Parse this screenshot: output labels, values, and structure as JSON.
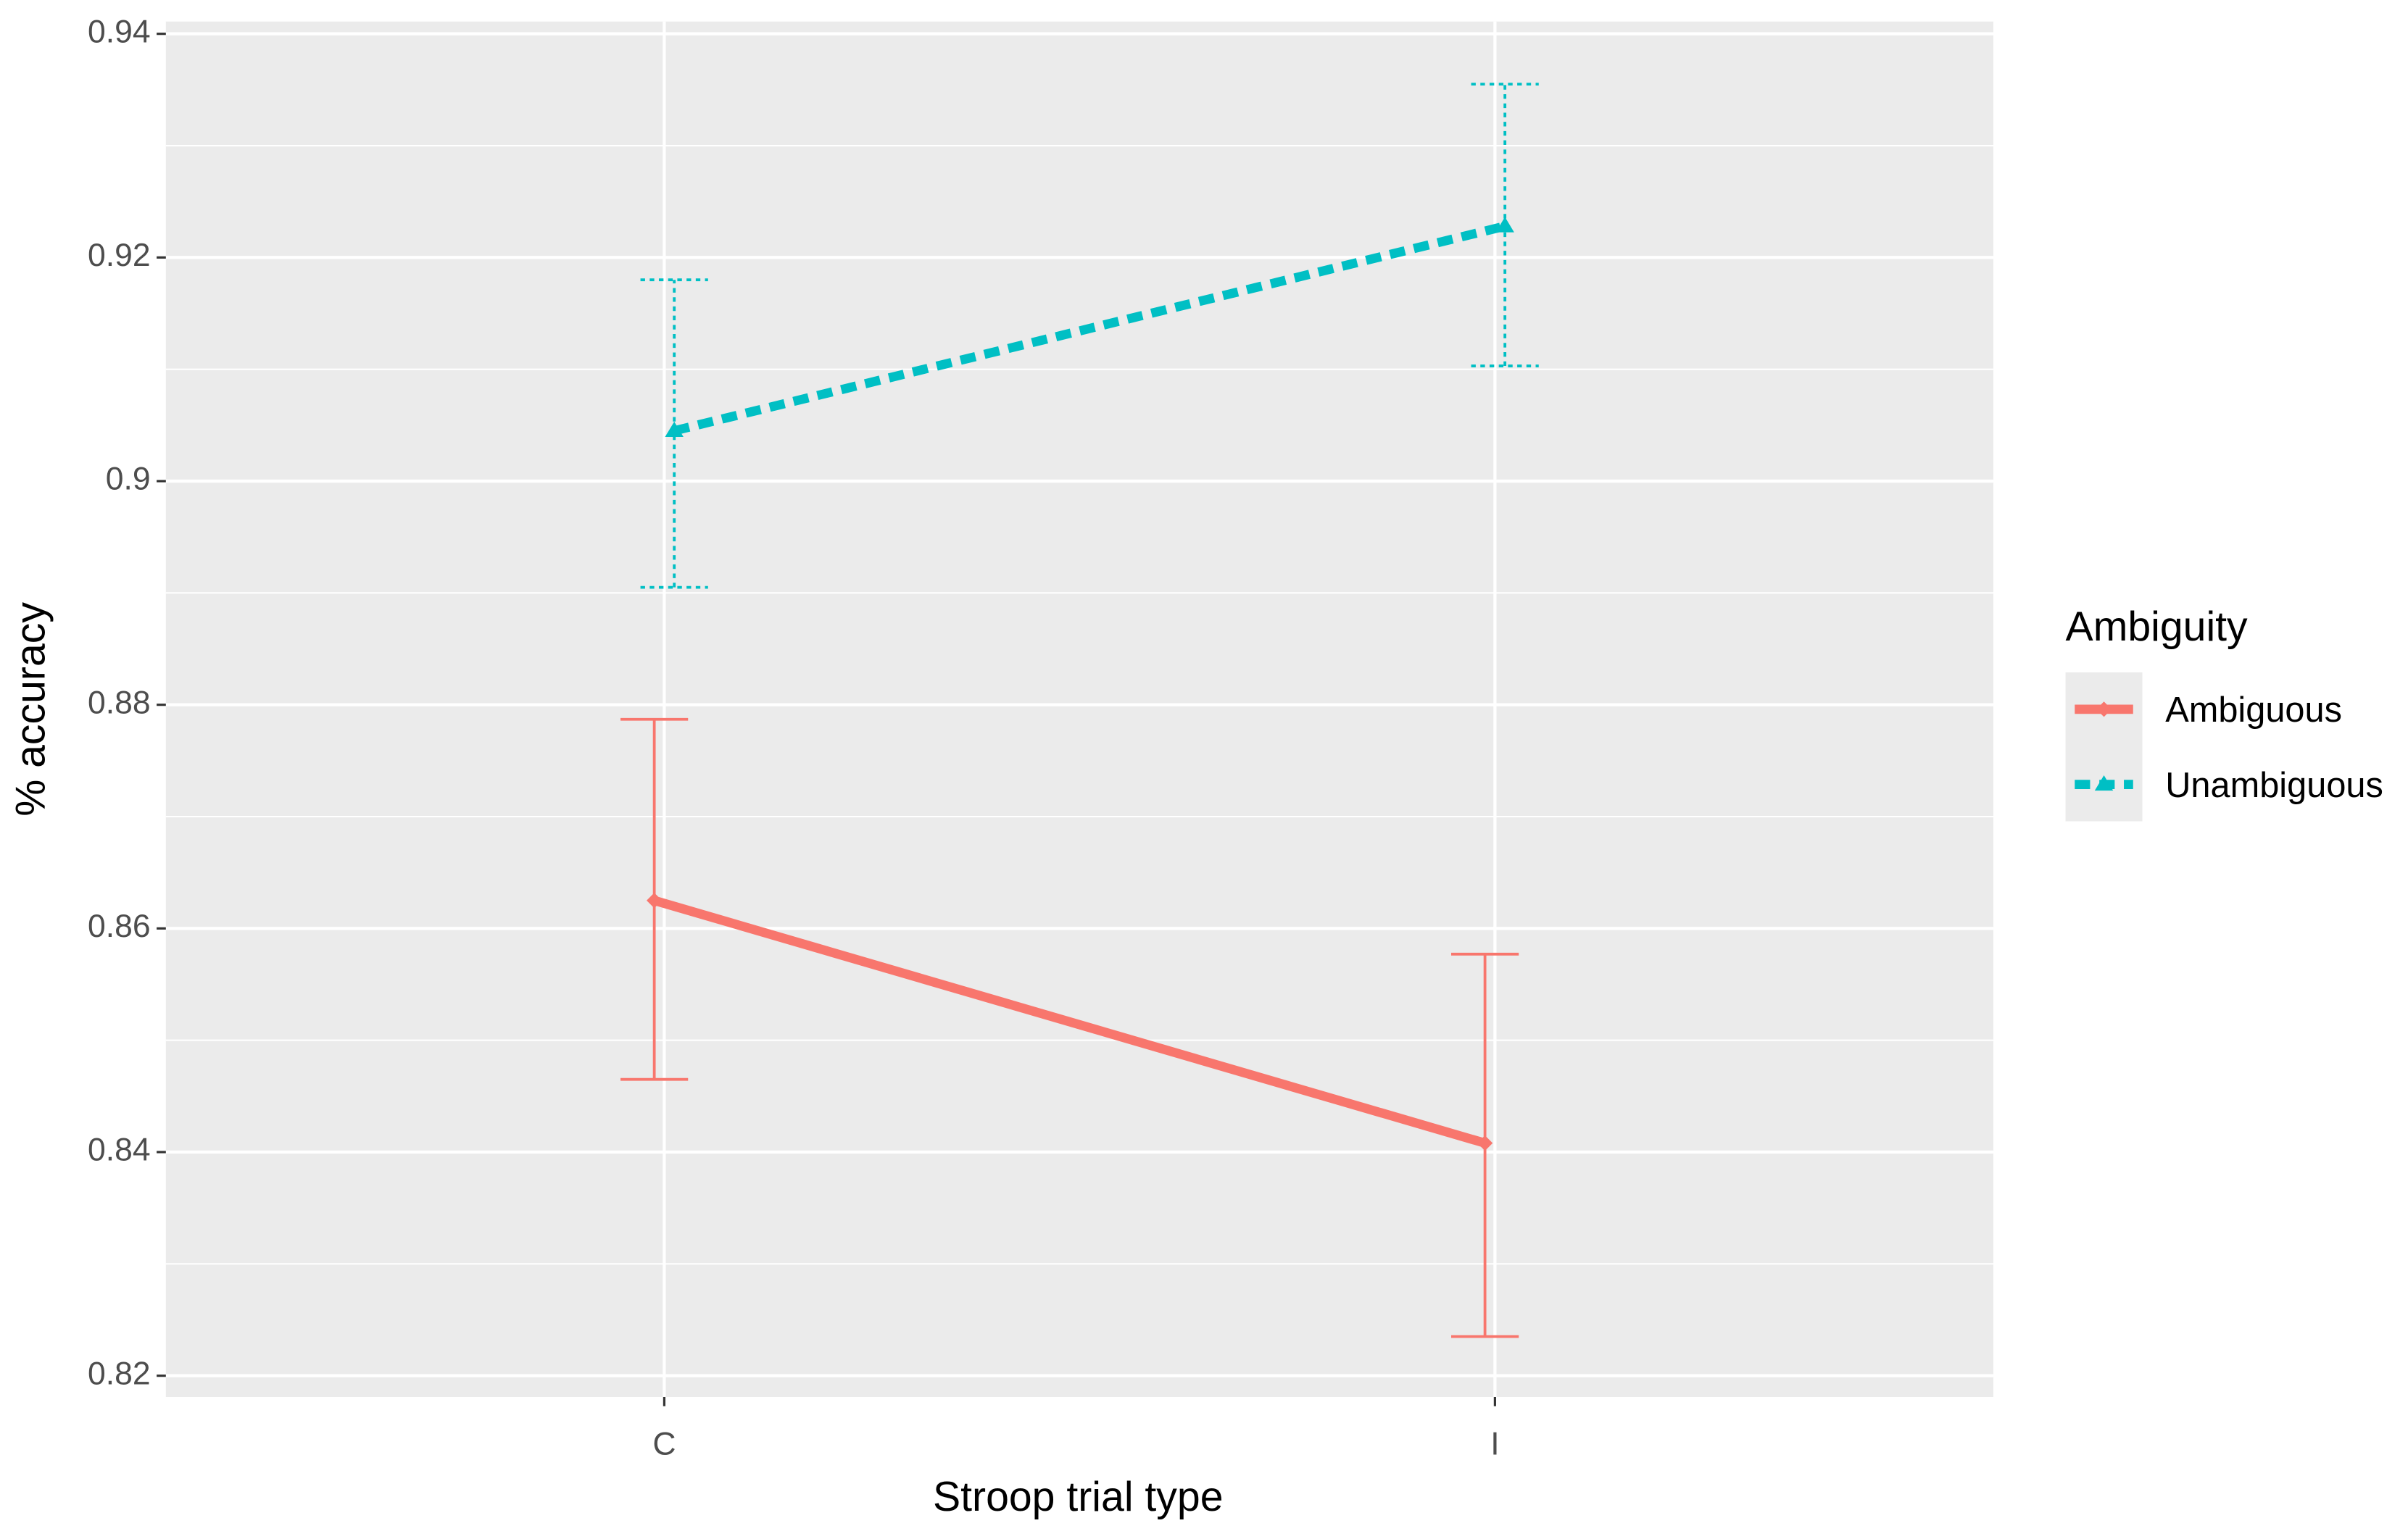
{
  "chart_data": {
    "type": "line",
    "x_label": "Stroop trial type",
    "y_label": "% accuracy",
    "categories": [
      "C",
      "I"
    ],
    "series": [
      {
        "name": "Ambiguous",
        "color": "#F8766D",
        "line_style": "solid",
        "marker": "diamond",
        "values": [
          0.8625,
          0.8408
        ],
        "lower": [
          0.8465,
          0.8235
        ],
        "upper": [
          0.8787,
          0.8577
        ]
      },
      {
        "name": "Unambiguous",
        "color": "#00BFC4",
        "line_style": "dashed",
        "marker": "triangle",
        "values": [
          0.9045,
          0.9228
        ],
        "lower": [
          0.8905,
          0.9103
        ],
        "upper": [
          0.918,
          0.9355
        ]
      }
    ],
    "ylim": [
      0.8181,
      0.9411
    ],
    "yticks": [
      0.82,
      0.84,
      0.86,
      0.88,
      0.9,
      {
        "value": 0.92,
        "label": "0.92"
      },
      0.94
    ],
    "grid": true,
    "legend_title": "Ambiguity",
    "legend_position": "right"
  }
}
